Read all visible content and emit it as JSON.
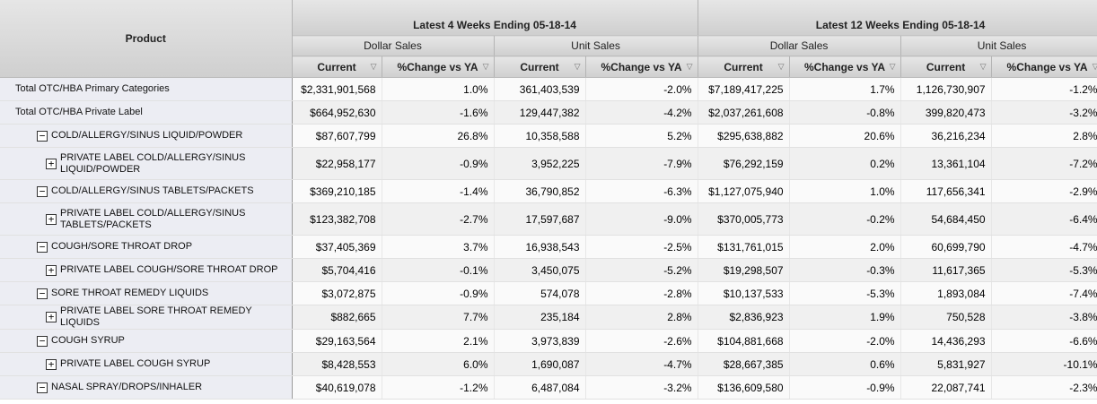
{
  "header": {
    "product_label": "Product",
    "periods": [
      {
        "label": "Latest 4 Weeks Ending 05-18-14"
      },
      {
        "label": "Latest 12 Weeks Ending 05-18-14"
      }
    ],
    "measures": [
      "Dollar Sales",
      "Unit Sales",
      "Dollar Sales",
      "Unit Sales"
    ],
    "columns": [
      "Current",
      "%Change vs YA",
      "Current",
      "%Change vs YA",
      "Current",
      "%Change vs YA",
      "Current",
      "%Change vs YA"
    ],
    "filter_icon": "funnel-icon"
  },
  "rows": [
    {
      "label": "Total OTC/HBA Primary Categories",
      "toggle": "",
      "values": [
        "$2,331,901,568",
        "1.0%",
        "361,403,539",
        "-2.0%",
        "$7,189,417,225",
        "1.7%",
        "1,126,730,907",
        "-1.2%"
      ]
    },
    {
      "label": "Total OTC/HBA Private Label",
      "toggle": "",
      "values": [
        "$664,952,630",
        "-1.6%",
        "129,447,382",
        "-4.2%",
        "$2,037,261,608",
        "-0.8%",
        "399,820,473",
        "-3.2%"
      ]
    },
    {
      "label": "COLD/ALLERGY/SINUS LIQUID/POWDER",
      "toggle": "−",
      "values": [
        "$87,607,799",
        "26.8%",
        "10,358,588",
        "5.2%",
        "$295,638,882",
        "20.6%",
        "36,216,234",
        "2.8%"
      ]
    },
    {
      "label": "PRIVATE LABEL COLD/ALLERGY/SINUS LIQUID/POWDER",
      "toggle": "+",
      "values": [
        "$22,958,177",
        "-0.9%",
        "3,952,225",
        "-7.9%",
        "$76,292,159",
        "0.2%",
        "13,361,104",
        "-7.2%"
      ]
    },
    {
      "label": "COLD/ALLERGY/SINUS TABLETS/PACKETS",
      "toggle": "−",
      "values": [
        "$369,210,185",
        "-1.4%",
        "36,790,852",
        "-6.3%",
        "$1,127,075,940",
        "1.0%",
        "117,656,341",
        "-2.9%"
      ]
    },
    {
      "label": "PRIVATE LABEL COLD/ALLERGY/SINUS TABLETS/PACKETS",
      "toggle": "+",
      "values": [
        "$123,382,708",
        "-2.7%",
        "17,597,687",
        "-9.0%",
        "$370,005,773",
        "-0.2%",
        "54,684,450",
        "-6.4%"
      ]
    },
    {
      "label": "COUGH/SORE THROAT DROP",
      "toggle": "−",
      "values": [
        "$37,405,369",
        "3.7%",
        "16,938,543",
        "-2.5%",
        "$131,761,015",
        "2.0%",
        "60,699,790",
        "-4.7%"
      ]
    },
    {
      "label": "PRIVATE LABEL COUGH/SORE THROAT DROP",
      "toggle": "+",
      "values": [
        "$5,704,416",
        "-0.1%",
        "3,450,075",
        "-5.2%",
        "$19,298,507",
        "-0.3%",
        "11,617,365",
        "-5.3%"
      ]
    },
    {
      "label": "SORE THROAT REMEDY LIQUIDS",
      "toggle": "−",
      "values": [
        "$3,072,875",
        "-0.9%",
        "574,078",
        "-2.8%",
        "$10,137,533",
        "-5.3%",
        "1,893,084",
        "-7.4%"
      ]
    },
    {
      "label": "PRIVATE LABEL SORE THROAT REMEDY LIQUIDS",
      "toggle": "+",
      "values": [
        "$882,665",
        "7.7%",
        "235,184",
        "2.8%",
        "$2,836,923",
        "1.9%",
        "750,528",
        "-3.8%"
      ]
    },
    {
      "label": "COUGH SYRUP",
      "toggle": "−",
      "values": [
        "$29,163,564",
        "2.1%",
        "3,973,839",
        "-2.6%",
        "$104,881,668",
        "-2.0%",
        "14,436,293",
        "-6.6%"
      ]
    },
    {
      "label": "PRIVATE LABEL COUGH SYRUP",
      "toggle": "+",
      "values": [
        "$8,428,553",
        "6.0%",
        "1,690,087",
        "-4.7%",
        "$28,667,385",
        "0.6%",
        "5,831,927",
        "-10.1%"
      ]
    },
    {
      "label": "NASAL SPRAY/DROPS/INHALER",
      "toggle": "−",
      "values": [
        "$40,619,078",
        "-1.2%",
        "6,487,084",
        "-3.2%",
        "$136,609,580",
        "-0.9%",
        "22,087,741",
        "-2.3%"
      ]
    }
  ]
}
